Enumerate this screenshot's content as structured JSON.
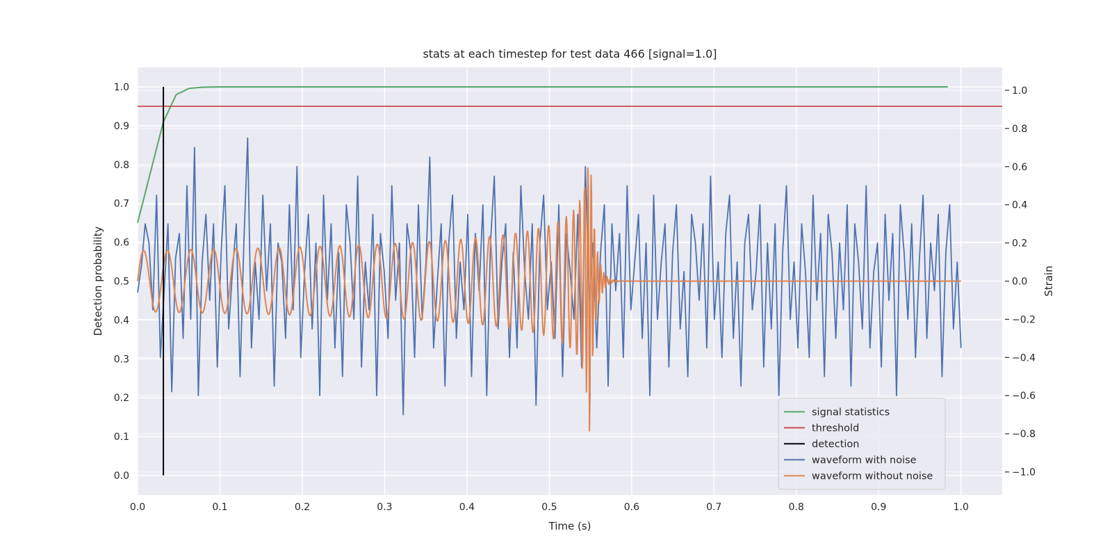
{
  "chart_data": {
    "type": "line",
    "title": "stats at each timestep for test data 466 [signal=1.0]",
    "xlabel": "Time (s)",
    "ylabel_left": "Detection probability",
    "ylabel_right": "Strain",
    "xlim": [
      0.0,
      1.05
    ],
    "ylim_left": [
      -0.05,
      1.05
    ],
    "ylim_right": [
      -1.12,
      1.12
    ],
    "x_ticks": [
      "0.0",
      "0.1",
      "0.2",
      "0.3",
      "0.4",
      "0.5",
      "0.6",
      "0.7",
      "0.8",
      "0.9",
      "1.0"
    ],
    "y_ticks_left": [
      "0.0",
      "0.1",
      "0.2",
      "0.3",
      "0.4",
      "0.5",
      "0.6",
      "0.7",
      "0.8",
      "0.9",
      "1.0"
    ],
    "y_ticks_right": [
      "−1.0",
      "−0.8",
      "−0.6",
      "−0.4",
      "−0.2",
      "0.0",
      "0.2",
      "0.4",
      "0.6",
      "0.8",
      "1.0"
    ],
    "grid": true,
    "legend_position": "lower-right",
    "colors": {
      "plot_bg": "#EAEAF2",
      "grid": "#FFFFFF",
      "signal_statistics": "#55A868",
      "threshold": "#C44E52",
      "detection": "#000000",
      "waveform_noise": "#4C72B0",
      "waveform_clean": "#DD8452"
    },
    "legend": [
      "signal statistics",
      "threshold",
      "detection",
      "waveform with noise",
      "waveform without noise"
    ],
    "series": [
      {
        "name": "signal statistics",
        "axis": "left",
        "x": [
          0.0,
          0.0156,
          0.0313,
          0.0469,
          0.0625,
          0.0781,
          0.1,
          0.2,
          0.3,
          0.4,
          0.5,
          0.6,
          0.7,
          0.8,
          0.9,
          0.984
        ],
        "y": [
          0.65,
          0.78,
          0.91,
          0.98,
          0.996,
          0.999,
          1.0,
          1.0,
          1.0,
          1.0,
          1.0,
          1.0,
          1.0,
          1.0,
          1.0,
          1.0
        ]
      },
      {
        "name": "threshold",
        "axis": "left",
        "x": [
          0.0,
          1.05
        ],
        "y": [
          0.95,
          0.95
        ]
      },
      {
        "name": "detection",
        "axis": "left",
        "x": [
          0.0313,
          0.0313
        ],
        "y": [
          0.0,
          1.0
        ]
      },
      {
        "name": "waveform with noise",
        "axis": "right",
        "x_range": [
          0.0,
          1.0
        ],
        "y": [
          -0.06,
          0.08,
          0.3,
          0.2,
          -0.15,
          0.45,
          -0.4,
          -0.05,
          0.3,
          -0.58,
          0.12,
          0.25,
          -0.3,
          0.5,
          -0.2,
          0.7,
          -0.6,
          0.1,
          0.35,
          -0.1,
          0.3,
          -0.45,
          0.15,
          0.5,
          -0.25,
          0.05,
          0.3,
          -0.5,
          0.2,
          0.75,
          -0.35,
          0.1,
          -0.2,
          0.45,
          -0.05,
          0.3,
          -0.55,
          0.2,
          0.1,
          -0.3,
          0.4,
          -0.15,
          0.6,
          -0.4,
          0.05,
          0.35,
          -0.25,
          0.2,
          -0.6,
          0.45,
          -0.1,
          0.3,
          -0.35,
          0.15,
          -0.5,
          0.4,
          0.2,
          -0.2,
          0.55,
          -0.45,
          0.1,
          -0.15,
          0.35,
          -0.6,
          0.25,
          0.05,
          -0.3,
          0.5,
          -0.1,
          0.2,
          -0.7,
          0.3,
          0.15,
          -0.4,
          0.4,
          -0.2,
          0.1,
          0.65,
          -0.35,
          0.0,
          0.3,
          -0.55,
          0.2,
          0.45,
          -0.3,
          0.1,
          -0.15,
          0.35,
          -0.5,
          0.25,
          -0.05,
          0.4,
          -0.6,
          0.2,
          0.55,
          -0.25,
          0.1,
          0.3,
          -0.4,
          0.15,
          -0.35,
          0.5,
          0.05,
          -0.2,
          0.3,
          -0.65,
          0.2,
          0.45,
          -0.15,
          0.1,
          -0.3,
          0.4,
          -0.5,
          0.25,
          0.05,
          -0.2,
          0.35,
          -0.45,
          0.6,
          -0.1,
          0.2,
          -0.35,
          0.15,
          0.4,
          -0.55,
          0.3,
          -0.05,
          0.25,
          -0.4,
          0.5,
          -0.15,
          0.1,
          0.35,
          -0.3,
          0.2,
          -0.6,
          0.45,
          -0.2,
          0.1,
          0.3,
          -0.45,
          0.15,
          0.4,
          -0.25,
          0.05,
          -0.5,
          0.35,
          0.2,
          -0.1,
          0.3,
          -0.35,
          0.55,
          -0.2,
          0.1,
          -0.4,
          0.25,
          0.45,
          -0.3,
          0.1,
          -0.55,
          0.2,
          0.35,
          -0.15,
          0.05,
          0.4,
          -0.45,
          0.2,
          -0.25,
          0.3,
          -0.6,
          0.15,
          0.5,
          -0.2,
          0.1,
          -0.35,
          0.3,
          0.05,
          -0.4,
          0.45,
          -0.1,
          0.25,
          -0.5,
          0.35,
          0.15,
          -0.3,
          0.2,
          -0.15,
          0.4,
          -0.55,
          0.3,
          0.1,
          -0.25,
          0.5,
          -0.35,
          0.05,
          0.2,
          -0.45,
          0.35,
          -0.1,
          0.25,
          -0.6,
          0.4,
          0.15,
          -0.2,
          0.3,
          -0.4,
          0.1,
          0.45,
          -0.3,
          0.2,
          -0.05,
          0.35,
          -0.5,
          0.15,
          0.4,
          -0.25,
          0.1,
          -0.35
        ],
        "note_points": "approximate noisy strain trace, amplitude roughly within [-0.8, 1.0]"
      },
      {
        "name": "waveform without noise",
        "axis": "right",
        "x_range": [
          0.0,
          1.0
        ],
        "model": "chirp",
        "merger_time": 0.548,
        "ringdown_decay": 0.006,
        "y_end_value": 0.0
      }
    ]
  }
}
